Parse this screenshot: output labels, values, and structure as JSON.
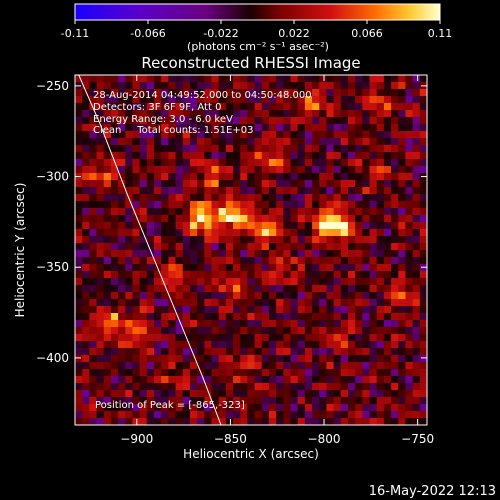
{
  "chart_data": {
    "type": "heatmap",
    "title": "Reconstructed RHESSI Image",
    "xlabel": "Heliocentric X (arcsec)",
    "ylabel": "Heliocentric Y (arcsec)",
    "xlim": [
      -933,
      -745
    ],
    "ylim": [
      -437,
      -244
    ],
    "xticks": [
      -900,
      -850,
      -800,
      -750
    ],
    "yticks": [
      -250,
      -300,
      -350,
      -400
    ],
    "colorbar": {
      "min": -0.11,
      "max": 0.11,
      "ticks": [
        "-0.11",
        "-0.066",
        "-0.022",
        "0.022",
        "0.066",
        "0.11"
      ],
      "units_label": "(photons cm⁻² s⁻¹ asec⁻²)"
    },
    "info_lines": [
      "28-Aug-2014 04:49:52.000 to 04:50:48.000",
      "Detectors: 3F 6F 9F, Att 0",
      "Energy Range: 3.0 - 6.0 keV",
      "Clean     Total counts: 1.51E+03"
    ],
    "peak_label": "Position of Peak = [-865,-323]",
    "peak_position": [
      -865,
      -323
    ],
    "limb_curve": [
      [
        -931,
        -244
      ],
      [
        -920,
        -270
      ],
      [
        -905,
        -310
      ],
      [
        -885,
        -360
      ],
      [
        -865,
        -410
      ],
      [
        -855,
        -437
      ]
    ],
    "image_grid": {
      "nx": 49,
      "ny": 50,
      "note": "pixel intensities shown as colour; values approximate"
    },
    "hot_spots": [
      {
        "x": -865,
        "y": -323,
        "v": 0.11
      },
      {
        "x": -848,
        "y": -322,
        "v": 0.1
      },
      {
        "x": -833,
        "y": -330,
        "v": 0.09
      },
      {
        "x": -800,
        "y": -325,
        "v": 0.08
      },
      {
        "x": -790,
        "y": -328,
        "v": 0.085
      },
      {
        "x": -860,
        "y": -300,
        "v": 0.06
      },
      {
        "x": -830,
        "y": -290,
        "v": 0.05
      },
      {
        "x": -805,
        "y": -260,
        "v": 0.05
      },
      {
        "x": -770,
        "y": -260,
        "v": 0.05
      },
      {
        "x": -915,
        "y": -380,
        "v": 0.07
      },
      {
        "x": -900,
        "y": -385,
        "v": 0.065
      },
      {
        "x": -920,
        "y": -300,
        "v": 0.05
      },
      {
        "x": -880,
        "y": -355,
        "v": 0.05
      },
      {
        "x": -760,
        "y": -365,
        "v": 0.05
      },
      {
        "x": -790,
        "y": -390,
        "v": 0.04
      },
      {
        "x": -840,
        "y": -405,
        "v": 0.04
      },
      {
        "x": -850,
        "y": -360,
        "v": 0.045
      },
      {
        "x": -880,
        "y": -410,
        "v": 0.03
      },
      {
        "x": -770,
        "y": -300,
        "v": 0.04
      },
      {
        "x": -820,
        "y": -350,
        "v": 0.035
      }
    ],
    "colormap": [
      [
        0.0,
        "#1a00ff"
      ],
      [
        0.18,
        "#5a00c8"
      ],
      [
        0.36,
        "#6a0080"
      ],
      [
        0.48,
        "#1a0000"
      ],
      [
        0.56,
        "#7a0000"
      ],
      [
        0.7,
        "#d01010"
      ],
      [
        0.82,
        "#ff6a00"
      ],
      [
        0.92,
        "#ffcc33"
      ],
      [
        1.0,
        "#ffffd0"
      ]
    ]
  },
  "footer": {
    "timestamp": "16-May-2022 12:13"
  }
}
